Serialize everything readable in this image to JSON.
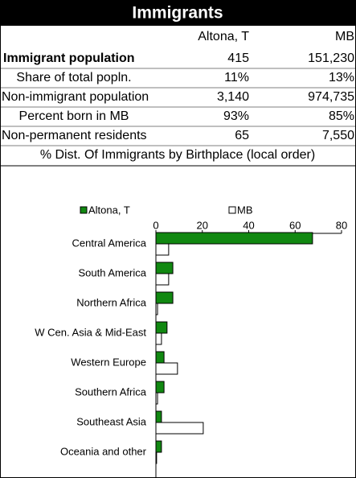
{
  "header": {
    "title": "Immigrants"
  },
  "table": {
    "columns": [
      "Altona, T",
      "MB"
    ],
    "rows": [
      [
        "Immigrant population",
        "415",
        "151,230"
      ],
      [
        "Share of total popln.",
        "11%",
        "13%"
      ],
      [
        "Non-immigrant population",
        "3,140",
        "974,735"
      ],
      [
        "Percent born in MB",
        "93%",
        "85%"
      ],
      [
        "Non-permanent residents",
        "65",
        "7,550"
      ]
    ]
  },
  "chart_data": {
    "type": "hbar",
    "title": "% Dist. Of Immigrants by Birthplace (local order)",
    "categories": [
      "Central America",
      "South America",
      "Northern Africa",
      "W Cen. Asia & Mid-East",
      "Western Europe",
      "Southern Africa",
      "Southeast Asia",
      "Oceania and other"
    ],
    "series": [
      {
        "name": "Altona, T",
        "color": "#118811",
        "values": [
          67.5,
          7.3,
          7.3,
          4.8,
          3.5,
          3.5,
          2.4,
          2.4
        ]
      },
      {
        "name": "MB",
        "color": "#ffffff",
        "values": [
          5.5,
          5.5,
          0.7,
          2.4,
          9.3,
          0.7,
          20.4,
          0.3
        ]
      }
    ],
    "xlim": [
      0,
      80
    ],
    "xticks": [
      0,
      20,
      40,
      60,
      80
    ],
    "legend": "top"
  }
}
